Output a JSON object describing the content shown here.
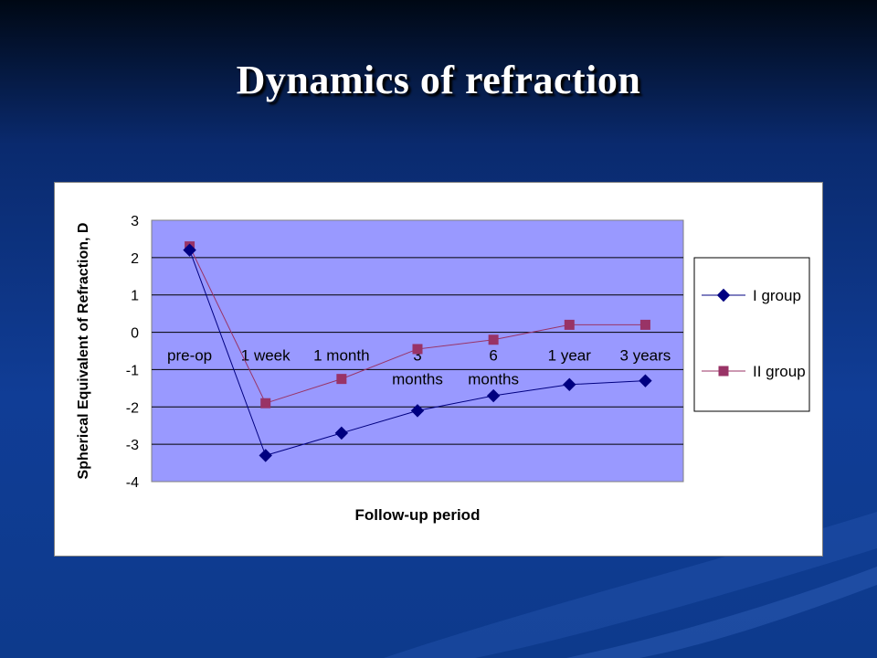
{
  "slide": {
    "title": "Dynamics of refraction"
  },
  "colors": {
    "background": "#0d3a8c",
    "plot_area": "#9999ff",
    "series_1": "#000080",
    "series_2": "#993366"
  },
  "chart_data": {
    "type": "line",
    "title": "",
    "xlabel": "Follow-up period",
    "ylabel": "Spherical Equivalent of Refraction, D",
    "ylim": [
      -4,
      3
    ],
    "yticks": [
      3,
      2,
      1,
      0,
      -1,
      -2,
      -3,
      -4
    ],
    "grid": "horizontal",
    "legend_position": "right",
    "categories": [
      "pre-op",
      "1 week",
      "1 month",
      "3 months",
      "6 months",
      "1 year",
      "3 years"
    ],
    "series": [
      {
        "name": "I group",
        "marker": "diamond",
        "color": "#000080",
        "values": [
          2.2,
          -3.3,
          -2.7,
          -2.1,
          -1.7,
          -1.4,
          -1.3
        ]
      },
      {
        "name": "II group",
        "marker": "square",
        "color": "#993366",
        "values": [
          2.3,
          -1.9,
          -1.25,
          -0.45,
          -0.2,
          0.2,
          0.2
        ]
      }
    ]
  }
}
